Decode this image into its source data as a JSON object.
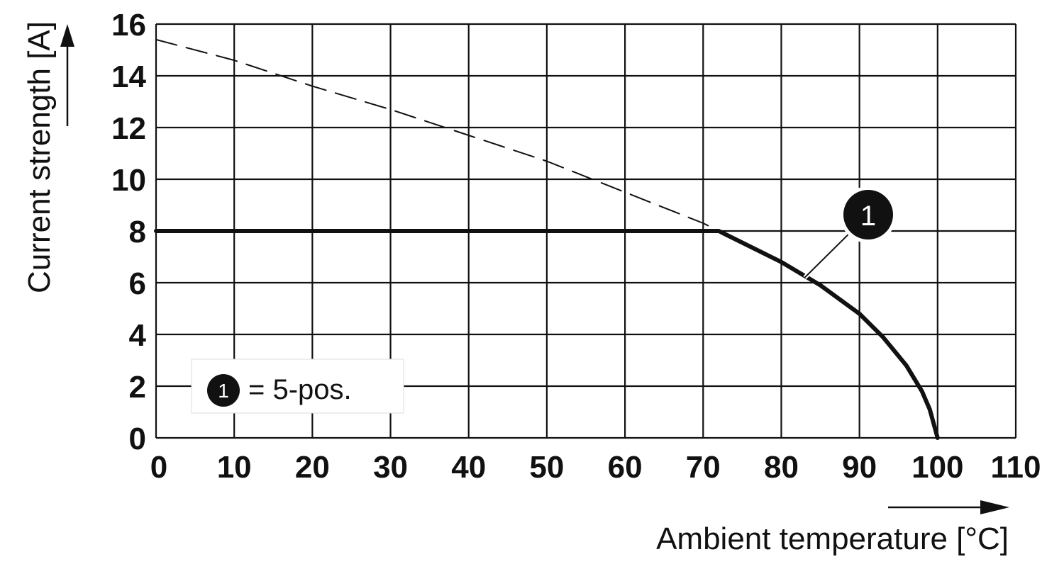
{
  "chart_data": {
    "type": "line",
    "xlabel": "Ambient temperature [°C]",
    "ylabel": "Current strength [A]",
    "xlim": [
      0,
      110
    ],
    "ylim": [
      0,
      16
    ],
    "xticks": [
      0,
      10,
      20,
      30,
      40,
      50,
      60,
      70,
      80,
      90,
      100,
      110
    ],
    "yticks": [
      0,
      2,
      4,
      6,
      8,
      10,
      12,
      14,
      16
    ],
    "grid": true,
    "series": [
      {
        "name": "1",
        "style": "solid",
        "x": [
          0,
          72,
          80,
          85,
          90,
          93,
          96,
          98,
          99,
          100
        ],
        "y": [
          8,
          8,
          6.8,
          5.9,
          4.8,
          3.9,
          2.8,
          1.8,
          1.1,
          0
        ]
      },
      {
        "style": "dashed",
        "x": [
          0,
          10,
          20,
          30,
          40,
          50,
          60,
          70,
          72
        ],
        "y": [
          15.4,
          14.6,
          13.6,
          12.7,
          11.7,
          10.7,
          9.5,
          8.3,
          8
        ]
      }
    ],
    "callout": {
      "label": "1",
      "points_to_x": 83,
      "points_to_y": 6.2
    },
    "legend": {
      "marker": "1",
      "text": "= 5-pos.",
      "position": "bottom-left"
    }
  }
}
